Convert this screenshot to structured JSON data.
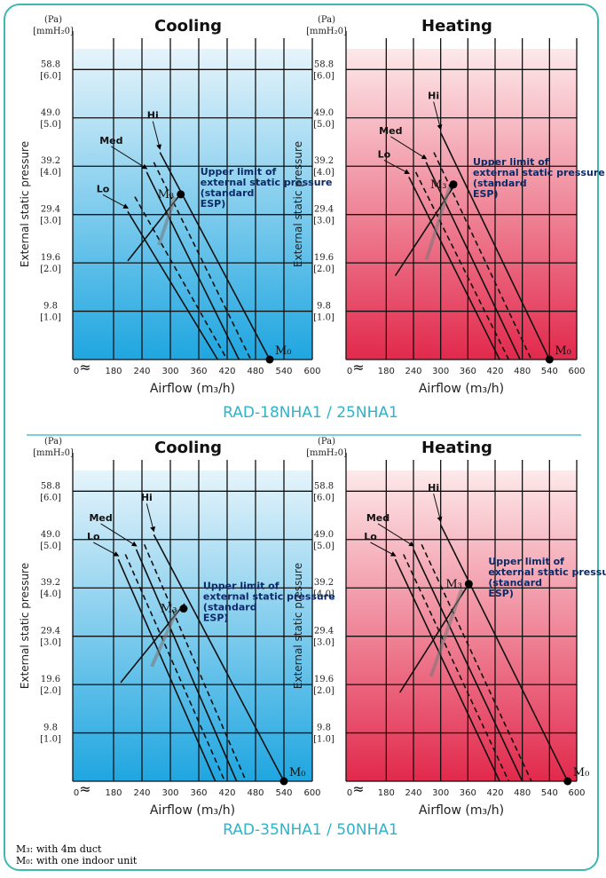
{
  "legend_notes": [
    "M₃: with 4m duct",
    "M₀: with one indoor unit"
  ],
  "colors": {
    "cooling_top": "#e6f4fb",
    "cooling_bottom": "#1fa6e0",
    "heating_top": "#fde9ea",
    "heating_bottom": "#e2294c",
    "teal": "#2fb3c9",
    "frame": "#3fb8b0"
  },
  "chart_data": [
    {
      "type": "line",
      "group_label": "RAD-18NHA1 / 25NHA1",
      "title": "Cooling",
      "xlabel": "Airflow (m₃/h)",
      "ylabel": "External static pressure",
      "y_units": [
        "(Pa)",
        "[mmH₂0]"
      ],
      "x_ticks": [
        "0",
        "180",
        "240",
        "300",
        "360",
        "420",
        "480",
        "540",
        "600"
      ],
      "y_ticks": [
        {
          "pa": "58.8",
          "mm": "[6.0]"
        },
        {
          "pa": "49.0",
          "mm": "[5.0]"
        },
        {
          "pa": "39.2",
          "mm": "[4.0]"
        },
        {
          "pa": "29.4",
          "mm": "[3.0]"
        },
        {
          "pa": "19.6",
          "mm": "[2.0]"
        },
        {
          "pa": "9.8",
          "mm": "[1.0]"
        }
      ],
      "xlim": [
        150,
        600
      ],
      "ylim": [
        0,
        63
      ],
      "series": [
        {
          "name": "Lo",
          "style": "solid",
          "x": [
            210,
            400
          ],
          "y": [
            30,
            0
          ]
        },
        {
          "name": "Lo",
          "style": "dashed",
          "x": [
            225,
            420
          ],
          "y": [
            33,
            0
          ]
        },
        {
          "name": "Med",
          "style": "solid",
          "x": [
            250,
            445
          ],
          "y": [
            38,
            0
          ]
        },
        {
          "name": "Med",
          "style": "dashed",
          "x": [
            265,
            470
          ],
          "y": [
            40,
            0
          ]
        },
        {
          "name": "Hi",
          "style": "solid",
          "x": [
            278,
            510
          ],
          "y": [
            42,
            0
          ]
        }
      ],
      "esp_line": {
        "x": [
          210,
          325
        ],
        "y": [
          20,
          34
        ]
      },
      "annotation": "Upper limit of external static pressure (standard ESP)",
      "points": [
        {
          "label": "M₃",
          "x": 322,
          "y": 33.5
        },
        {
          "label": "M₀",
          "x": 510,
          "y": 0
        }
      ]
    },
    {
      "type": "line",
      "group_label": "RAD-18NHA1 / 25NHA1",
      "title": "Heating",
      "xlabel": "Airflow (m₃/h)",
      "ylabel": "External static pressure",
      "y_units": [
        "(Pa)",
        "[mmH₂0]"
      ],
      "x_ticks": [
        "0",
        "180",
        "240",
        "300",
        "360",
        "420",
        "480",
        "540",
        "600"
      ],
      "y_ticks": [
        {
          "pa": "58.8",
          "mm": "[6.0]"
        },
        {
          "pa": "49.0",
          "mm": "[5.0]"
        },
        {
          "pa": "39.2",
          "mm": "[4.0]"
        },
        {
          "pa": "29.4",
          "mm": "[3.0]"
        },
        {
          "pa": "19.6",
          "mm": "[2.0]"
        },
        {
          "pa": "9.8",
          "mm": "[1.0]"
        }
      ],
      "xlim": [
        150,
        600
      ],
      "ylim": [
        0,
        63
      ],
      "series": [
        {
          "name": "Lo",
          "style": "solid",
          "x": [
            230,
            430
          ],
          "y": [
            37,
            0
          ]
        },
        {
          "name": "Lo",
          "style": "dashed",
          "x": [
            245,
            450
          ],
          "y": [
            38,
            0
          ]
        },
        {
          "name": "Med",
          "style": "solid",
          "x": [
            268,
            475
          ],
          "y": [
            40,
            0
          ]
        },
        {
          "name": "Med",
          "style": "dashed",
          "x": [
            285,
            500
          ],
          "y": [
            42,
            0
          ]
        },
        {
          "name": "Hi",
          "style": "solid",
          "x": [
            300,
            540
          ],
          "y": [
            46,
            0
          ]
        }
      ],
      "esp_line": {
        "x": [
          200,
          335
        ],
        "y": [
          17,
          36
        ]
      },
      "annotation": "Upper limit of external static pressure (standard ESP)",
      "points": [
        {
          "label": "M₃",
          "x": 328,
          "y": 35.5
        },
        {
          "label": "M₀",
          "x": 540,
          "y": 0
        }
      ]
    },
    {
      "type": "line",
      "group_label": "RAD-35NHA1 / 50NHA1",
      "title": "Cooling",
      "xlabel": "Airflow (m₃/h)",
      "ylabel": "External static pressure",
      "y_units": [
        "(Pa)",
        "[mmH₂0]"
      ],
      "x_ticks": [
        "0",
        "180",
        "240",
        "300",
        "360",
        "420",
        "480",
        "540",
        "600"
      ],
      "y_ticks": [
        {
          "pa": "58.8",
          "mm": "[6.0]"
        },
        {
          "pa": "49.0",
          "mm": "[5.0]"
        },
        {
          "pa": "39.2",
          "mm": "[4.0]"
        },
        {
          "pa": "29.4",
          "mm": "[3.0]"
        },
        {
          "pa": "19.6",
          "mm": "[2.0]"
        },
        {
          "pa": "9.8",
          "mm": "[1.0]"
        }
      ],
      "xlim": [
        150,
        600
      ],
      "ylim": [
        0,
        63
      ],
      "series": [
        {
          "name": "Lo",
          "style": "solid",
          "x": [
            190,
            395
          ],
          "y": [
            45,
            0
          ]
        },
        {
          "name": "Lo",
          "style": "dashed",
          "x": [
            205,
            415
          ],
          "y": [
            46,
            0
          ]
        },
        {
          "name": "Med",
          "style": "solid",
          "x": [
            228,
            440
          ],
          "y": [
            47,
            0
          ]
        },
        {
          "name": "Med",
          "style": "dashed",
          "x": [
            245,
            460
          ],
          "y": [
            48,
            0
          ]
        },
        {
          "name": "Hi",
          "style": "solid",
          "x": [
            265,
            540
          ],
          "y": [
            50,
            0
          ]
        }
      ],
      "esp_line": {
        "x": [
          195,
          330
        ],
        "y": [
          20,
          36
        ]
      },
      "annotation": "Upper limit of external static pressure (standard ESP)",
      "points": [
        {
          "label": "M₃",
          "x": 328,
          "y": 35
        },
        {
          "label": "M₀",
          "x": 540,
          "y": 0
        }
      ]
    },
    {
      "type": "line",
      "group_label": "RAD-35NHA1 / 50NHA1",
      "title": "Heating",
      "xlabel": "Airflow (m₃/h)",
      "ylabel": "External static pressure",
      "y_units": [
        "(Pa)",
        "[mmH₂0]"
      ],
      "x_ticks": [
        "0",
        "180",
        "240",
        "300",
        "360",
        "420",
        "480",
        "540",
        "600"
      ],
      "y_ticks": [
        {
          "pa": "58.8",
          "mm": "[6.0]"
        },
        {
          "pa": "49.0",
          "mm": "[5.0]"
        },
        {
          "pa": "39.2",
          "mm": "[4.0]"
        },
        {
          "pa": "29.4",
          "mm": "[3.0]"
        },
        {
          "pa": "19.6",
          "mm": "[2.0]"
        },
        {
          "pa": "9.8",
          "mm": "[1.0]"
        }
      ],
      "xlim": [
        150,
        600
      ],
      "ylim": [
        0,
        63
      ],
      "series": [
        {
          "name": "Lo",
          "style": "solid",
          "x": [
            200,
            430
          ],
          "y": [
            45,
            0
          ]
        },
        {
          "name": "Lo",
          "style": "dashed",
          "x": [
            218,
            450
          ],
          "y": [
            46,
            0
          ]
        },
        {
          "name": "Med",
          "style": "solid",
          "x": [
            240,
            480
          ],
          "y": [
            47,
            0
          ]
        },
        {
          "name": "Med",
          "style": "dashed",
          "x": [
            258,
            500
          ],
          "y": [
            48,
            0
          ]
        },
        {
          "name": "Hi",
          "style": "solid",
          "x": [
            300,
            580
          ],
          "y": [
            52,
            0
          ]
        }
      ],
      "esp_line": {
        "x": [
          210,
          362
        ],
        "y": [
          18,
          40
        ]
      },
      "annotation": "Upper limit of external static pressure (standard ESP)",
      "points": [
        {
          "label": "M₃",
          "x": 362,
          "y": 40
        },
        {
          "label": "M₀",
          "x": 580,
          "y": 0
        }
      ]
    }
  ]
}
